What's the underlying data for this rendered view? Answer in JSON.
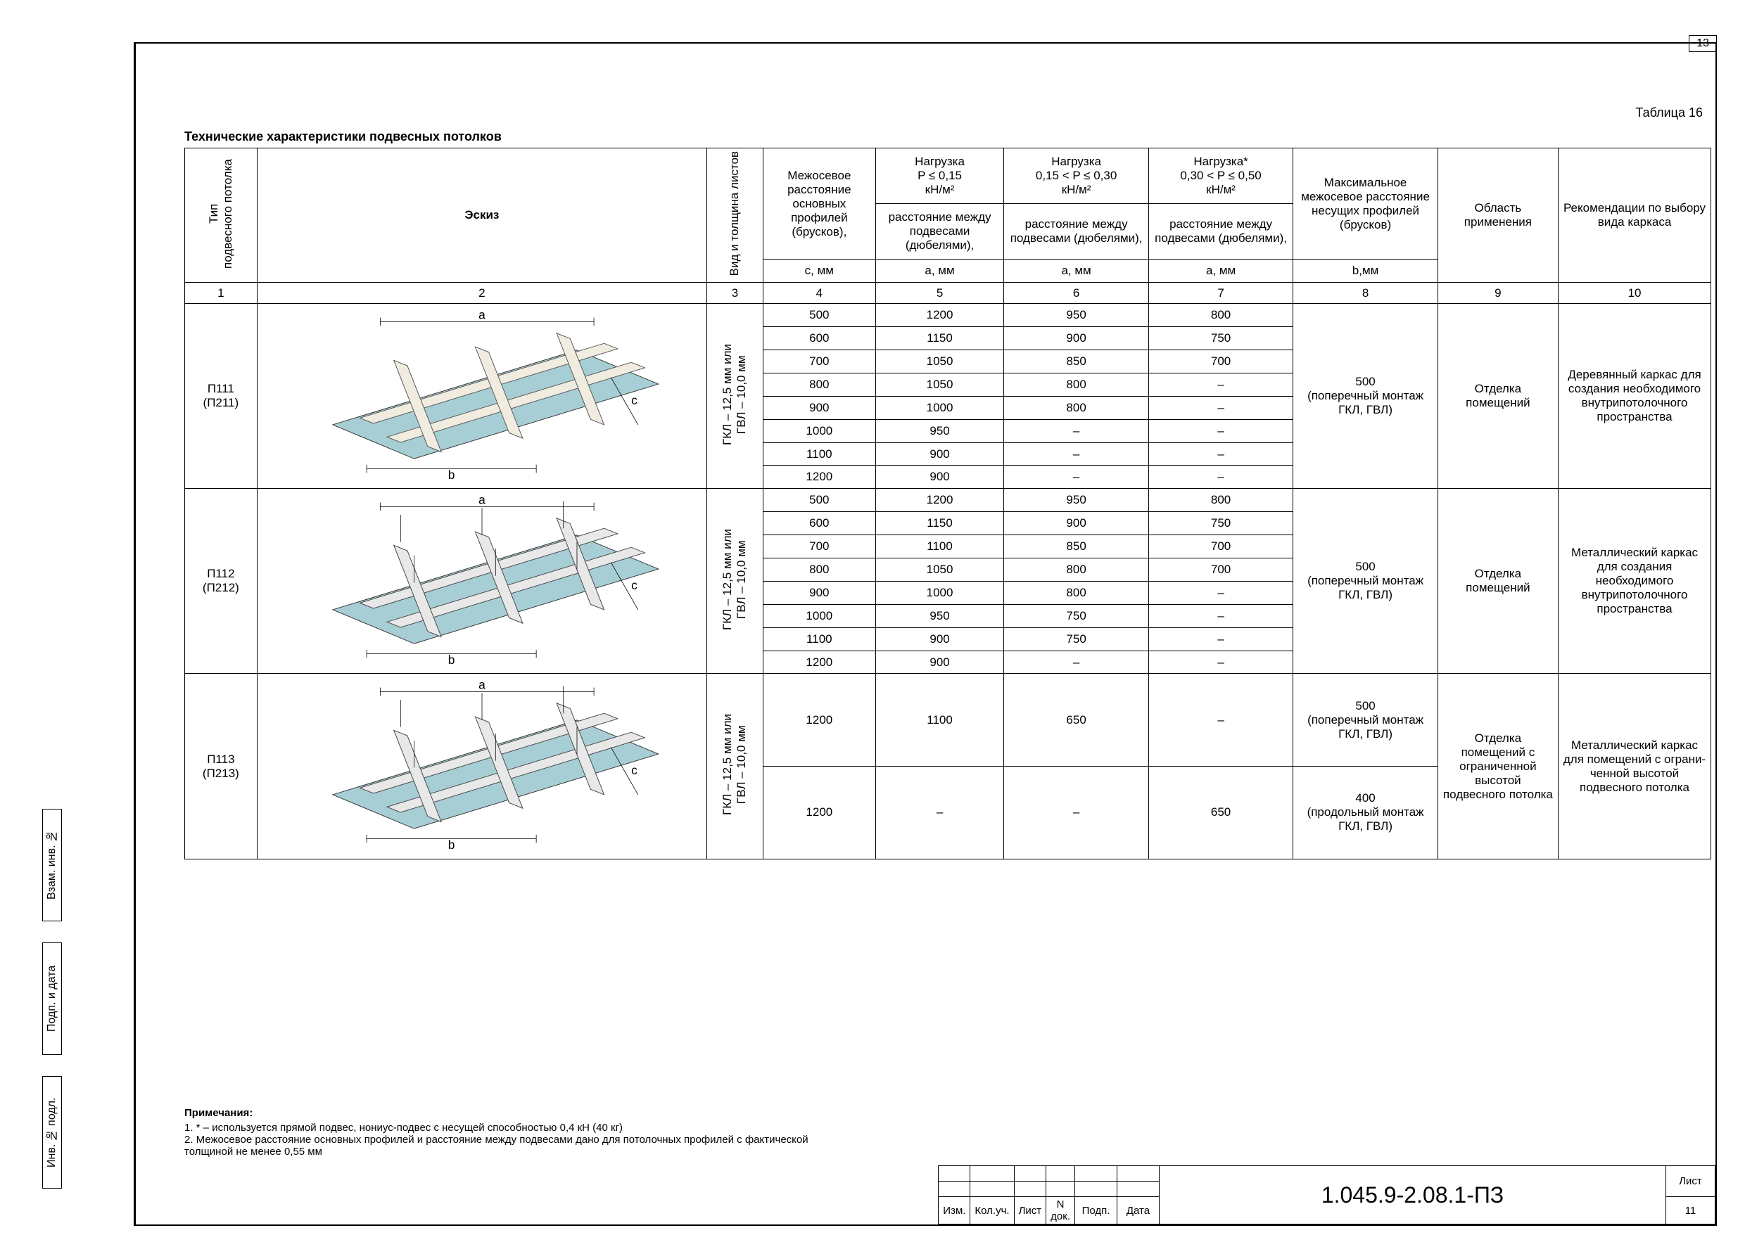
{
  "pageNumTop": "13",
  "tableNum": "Таблица 16",
  "title": "Технические характеристики подвесных потолков",
  "sideStamps": [
    "Взам. инв. №",
    "Подп. и дата",
    "Инв. № подл."
  ],
  "headers": {
    "col1": "Тип\nподвесного потолка",
    "col2": "Эскиз",
    "col3": "Вид и толщина листов",
    "col4a": "Межосевое расстояние основных профилей (брусков),",
    "col4b": "с, мм",
    "col5a": "Нагрузка\nP ≤ 0,15\nкН/м²",
    "col6a": "Нагрузка\n0,15 < P ≤ 0,30\nкН/м²",
    "col7a": "Нагрузка*\n0,30 < P ≤ 0,50\nкН/м²",
    "col567b": "расстояние между подвесами (дюбелями),",
    "col567c": "a, мм",
    "col8a": "Максимальное межосевое расстояние несущих профилей (брусков)",
    "col8b": "b,мм",
    "col9": "Область применения",
    "col10": "Рекомендации по выбору вида каркаса"
  },
  "colNums": [
    "1",
    "2",
    "3",
    "4",
    "5",
    "6",
    "7",
    "8",
    "9",
    "10"
  ],
  "sheetType": "ГКЛ – 12,5 мм или\nГВЛ – 10,0 мм",
  "rowGroups": [
    {
      "type": "П111\n(П211)",
      "sketch": "wood",
      "rows": [
        [
          "500",
          "1200",
          "950",
          "800"
        ],
        [
          "600",
          "1150",
          "900",
          "750"
        ],
        [
          "700",
          "1050",
          "850",
          "700"
        ],
        [
          "800",
          "1050",
          "800",
          "–"
        ],
        [
          "900",
          "1000",
          "800",
          "–"
        ],
        [
          "1000",
          "950",
          "–",
          "–"
        ],
        [
          "1100",
          "900",
          "–",
          "–"
        ],
        [
          "1200",
          "900",
          "–",
          "–"
        ]
      ],
      "col8": "500\n(поперечный монтаж\nГКЛ, ГВЛ)",
      "col9": "Отделка помещений",
      "col10": "Деревянный каркас для создания необходимого внутрипотолоч­ного простран­ства"
    },
    {
      "type": "П112\n(П212)",
      "sketch": "metal",
      "rows": [
        [
          "500",
          "1200",
          "950",
          "800"
        ],
        [
          "600",
          "1150",
          "900",
          "750"
        ],
        [
          "700",
          "1100",
          "850",
          "700"
        ],
        [
          "800",
          "1050",
          "800",
          "700"
        ],
        [
          "900",
          "1000",
          "800",
          "–"
        ],
        [
          "1000",
          "950",
          "750",
          "–"
        ],
        [
          "1100",
          "900",
          "750",
          "–"
        ],
        [
          "1200",
          "900",
          "–",
          "–"
        ]
      ],
      "col8": "500\n(поперечный монтаж\nГКЛ, ГВЛ)",
      "col9": "Отделка помещений",
      "col10": "Металличе­ский каркас для создания необходимого внутрипотолоч­ного простран­ства"
    },
    {
      "type": "П113\n(П213)",
      "sketch": "metal2",
      "rows": [
        [
          "1200",
          "1100",
          "650",
          "–"
        ],
        [
          "1200",
          "–",
          "–",
          "650"
        ]
      ],
      "col8_list": [
        "500\n(поперечный монтаж\nГКЛ, ГВЛ)",
        "400\n(продольный монтаж\nГКЛ, ГВЛ)"
      ],
      "col9": "Отделка помещений с ограничен­ной высотой подвесного потолка",
      "col10": "Металлический каркас для помеще­ний с ограни­ченной высо­той подвесного потолка"
    }
  ],
  "notesHeader": "Примечания:",
  "notes": [
    "1. * – используется прямой подвес, нониус-подвес с несущей способностью 0,4 кН (40 кг)",
    "2. Межосевое расстояние основных профилей и расстояние между подвесами дано для потолочных профилей с фактической толщиной не менее 0,55 мм"
  ],
  "titleBlock": {
    "cols": [
      "Изм.",
      "Кол.уч.",
      "Лист",
      "N док.",
      "Подп.",
      "Дата"
    ],
    "code": "1.045.9-2.08.1-ПЗ",
    "sheetLabel": "Лист",
    "sheetNum": "11"
  },
  "dimLabels": {
    "a": "a",
    "b": "b",
    "c": "c"
  },
  "colors": {
    "panel": "#a8ced5",
    "wood": "#f0ece0",
    "metal": "#e8e8e8",
    "border": "#000000"
  }
}
